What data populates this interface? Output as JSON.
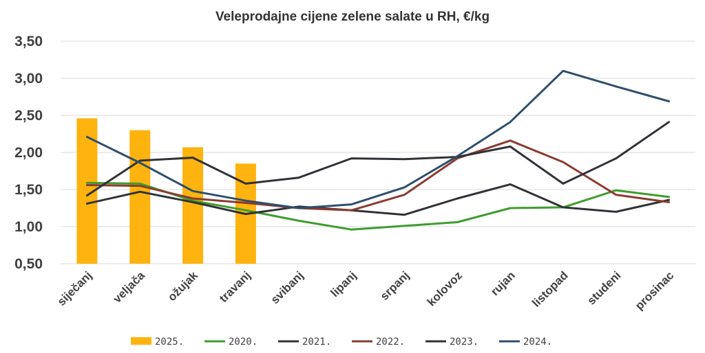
{
  "chart_data": {
    "type": "bar+line",
    "title": "Veleprodajne cijene zelene salate u RH, €/kg",
    "xlabel": "",
    "ylabel": "",
    "ylim": [
      0.5,
      3.5
    ],
    "yticks": [
      "0,50",
      "1,00",
      "1,50",
      "2,00",
      "2,50",
      "3,00",
      "3,50"
    ],
    "categories": [
      "siječanj",
      "veljača",
      "ožujak",
      "travanj",
      "svibanj",
      "lipanj",
      "srpanj",
      "kolovoz",
      "rujan",
      "listopad",
      "studeni",
      "prosinac"
    ],
    "grid": true,
    "legend_position": "bottom",
    "bars": {
      "name": "2025.",
      "color": "#ffb30f",
      "values": [
        2.46,
        2.3,
        2.07,
        1.85,
        null,
        null,
        null,
        null,
        null,
        null,
        null,
        null
      ]
    },
    "series": [
      {
        "name": "2020.",
        "color": "#3f9c2e",
        "values": [
          1.59,
          1.58,
          1.35,
          1.22,
          1.08,
          0.96,
          1.01,
          1.06,
          1.25,
          1.26,
          1.49,
          1.4
        ]
      },
      {
        "name": "2021.",
        "color": "#2f3236",
        "values": [
          1.31,
          1.47,
          1.33,
          1.17,
          1.27,
          1.22,
          1.16,
          1.38,
          1.57,
          1.26,
          1.2,
          1.36
        ]
      },
      {
        "name": "2022.",
        "color": "#8b3b30",
        "values": [
          1.56,
          1.55,
          1.38,
          1.32,
          1.25,
          1.22,
          1.43,
          1.92,
          2.16,
          1.87,
          1.43,
          1.33
        ]
      },
      {
        "name": "2023.",
        "color": "#2f3236",
        "values": [
          1.42,
          1.89,
          1.93,
          1.58,
          1.66,
          1.92,
          1.91,
          1.94,
          2.08,
          1.58,
          1.92,
          2.41
        ]
      },
      {
        "name": "2024.",
        "color": "#2e4e6e",
        "values": [
          2.21,
          1.86,
          1.48,
          1.35,
          1.25,
          1.3,
          1.53,
          1.95,
          2.41,
          3.1,
          2.89,
          2.69
        ]
      }
    ]
  }
}
